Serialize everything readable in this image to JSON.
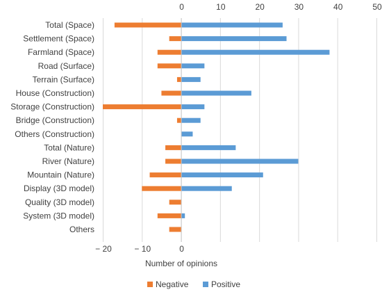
{
  "chart_data": {
    "type": "bar",
    "orientation": "horizontal",
    "stacked": true,
    "categories": [
      "Total (Space)",
      "Settlement (Space)",
      "Farmland (Space)",
      "Road (Surface)",
      "Terrain (Surface)",
      "House (Construction)",
      "Storage (Construction)",
      "Bridge (Construction)",
      "Others (Construction)",
      "Total (Nature)",
      "River (Nature)",
      "Mountain (Nature)",
      "Display (3D model)",
      "Quality (3D model)",
      "System (3D model)",
      "Others"
    ],
    "series": [
      {
        "name": "Negative",
        "color": "#ed7d31",
        "values": [
          -17,
          -3,
          -6,
          -6,
          -1,
          -5,
          -20,
          -1,
          0,
          -4,
          -4,
          -8,
          -10,
          -3,
          -6,
          -3
        ]
      },
      {
        "name": "Positive",
        "color": "#5b9bd5",
        "values": [
          26,
          27,
          38,
          6,
          5,
          18,
          6,
          5,
          3,
          14,
          30,
          21,
          13,
          0,
          1,
          0
        ]
      }
    ],
    "xlim": [
      -20,
      50
    ],
    "top_ticks": [
      "0",
      "10",
      "20",
      "30",
      "40",
      "50"
    ],
    "bottom_ticks": [
      "− 20",
      "− 10",
      "0"
    ],
    "xlabel": "Number of opinions",
    "ylabel": "",
    "title": "",
    "grid": true,
    "legend_position": "bottom"
  }
}
